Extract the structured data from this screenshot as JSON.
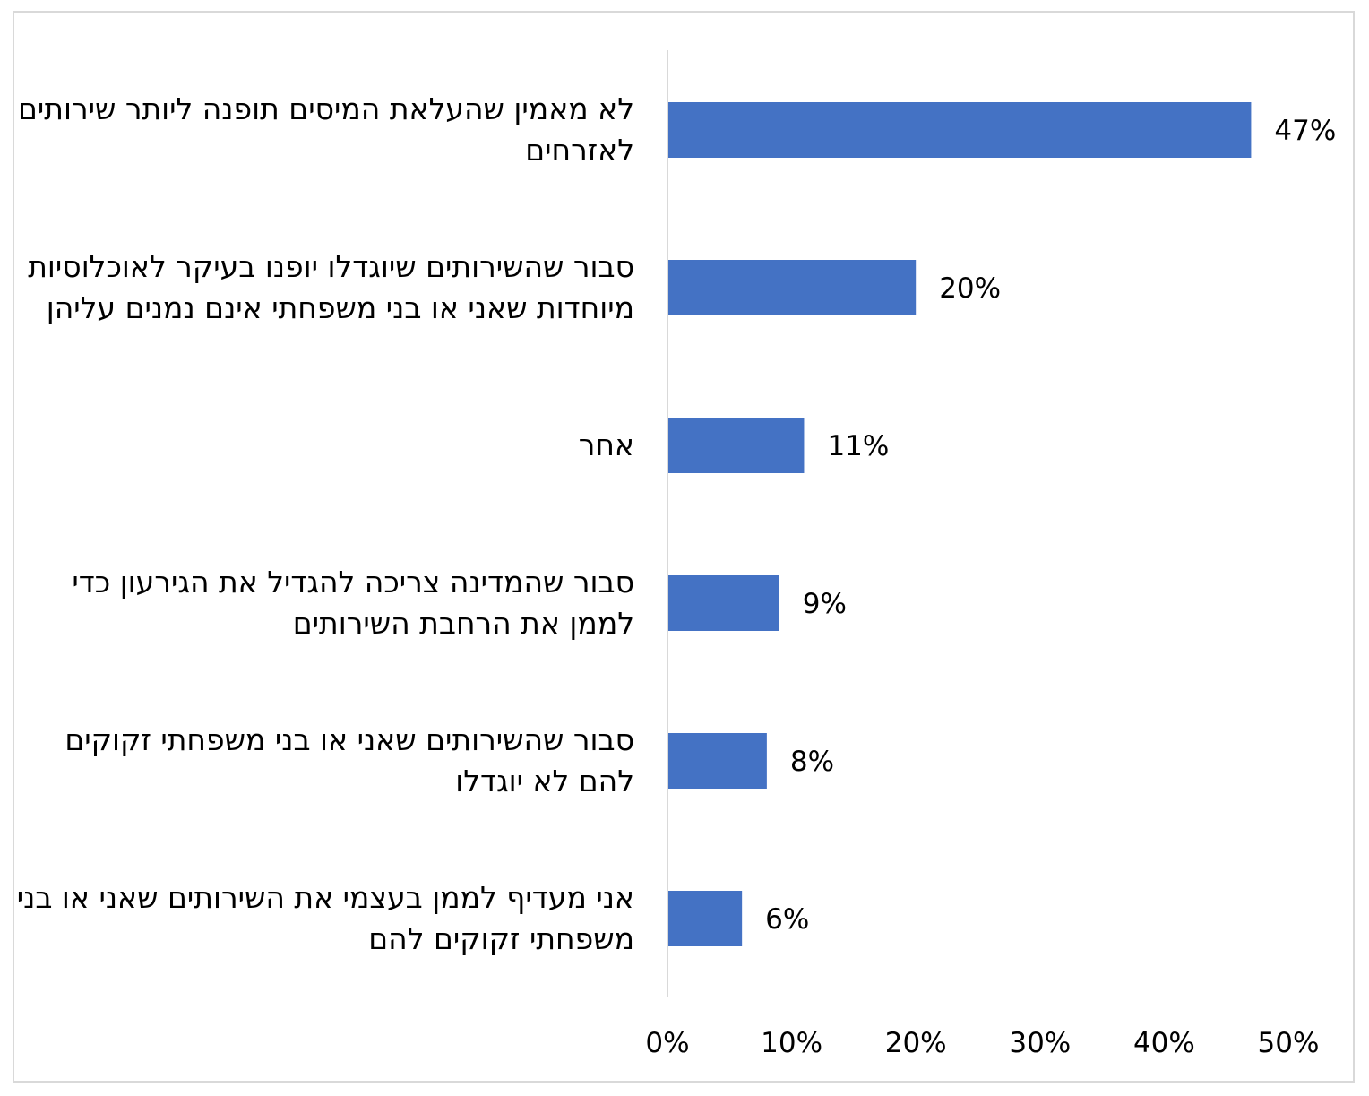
{
  "chart_data": {
    "type": "bar",
    "orientation": "horizontal",
    "title": "",
    "xlabel": "",
    "ylabel": "",
    "categories": [
      "לא מאמין שהעלאת המיסים תופנה ליותר שירותים לאזרחים",
      "סבור שהשירותים שיוגדלו יופנו בעיקר לאוכלוסיות מיוחדות שאני או בני משפחתי אינם נמנים עליהן",
      "אחר",
      "סבור שהמדינה צריכה להגדיל את הגירעון כדי לממן את הרחבת השירותים",
      "סבור שהשירותים שאני או בני משפחתי זקוקים להם לא יוגדלו",
      "אני מעדיף לממן בעצמי את השירותים שאני או בני משפחתי זקוקים להם"
    ],
    "values": [
      47,
      20,
      11,
      9,
      8,
      6
    ],
    "value_labels": [
      "47%",
      "20%",
      "11%",
      "9%",
      "8%",
      "6%"
    ],
    "xlim": [
      0,
      50
    ],
    "x_ticks": [
      "0%",
      "10%",
      "20%",
      "30%",
      "40%",
      "50%"
    ],
    "grid": false,
    "bar_color": "#4472c4",
    "axis_color": "#d9d9d9"
  }
}
